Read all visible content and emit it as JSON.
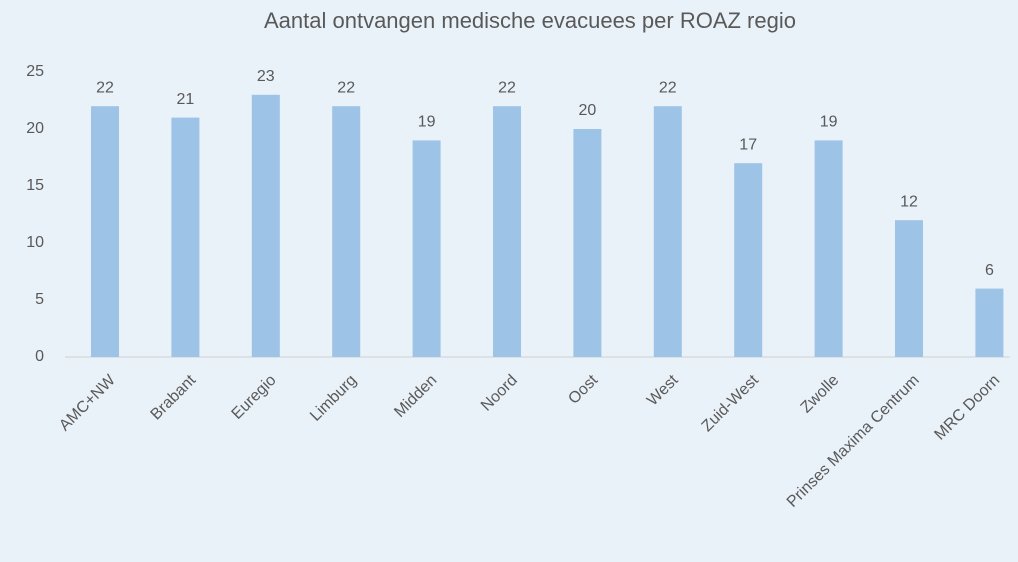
{
  "chart_data": {
    "type": "bar",
    "title": "Aantal ontvangen medische evacuees per ROAZ regio",
    "categories": [
      "AMC+NW",
      "Brabant",
      "Euregio",
      "Limburg",
      "Midden",
      "Noord",
      "Oost",
      "West",
      "Zuid-West",
      "Zwolle",
      "Prinses Maxima Centrum",
      "MRC Doorn"
    ],
    "values": [
      22,
      21,
      23,
      22,
      19,
      22,
      20,
      22,
      17,
      19,
      12,
      6
    ],
    "color": "#9dc3e6",
    "ylim": [
      0,
      25
    ],
    "yticks": [
      0,
      5,
      10,
      15,
      20,
      25
    ],
    "grid": false
  }
}
